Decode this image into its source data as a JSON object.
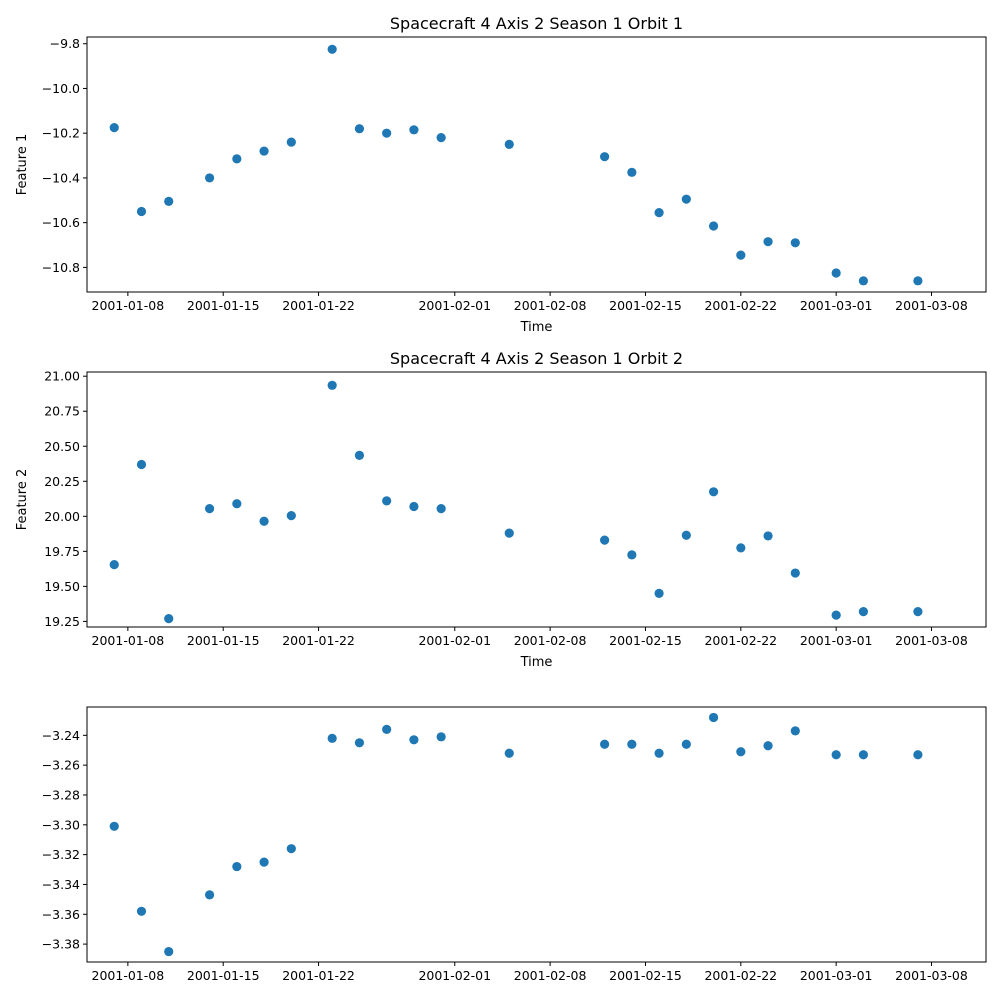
{
  "chart_data": [
    {
      "type": "scatter",
      "title": "Spacecraft 4 Axis 2 Season 1 Orbit 1",
      "xlabel": "Time",
      "ylabel": "Feature 1",
      "xlim": [
        "2001-01-05",
        "2001-03-12"
      ],
      "ylim": [
        -10.91,
        -9.77
      ],
      "xticks": [
        "2001-01-08",
        "2001-01-15",
        "2001-01-22",
        "2001-02-01",
        "2001-02-08",
        "2001-02-15",
        "2001-02-22",
        "2001-03-01",
        "2001-03-08"
      ],
      "yticks": [
        "-10.8",
        "-10.6",
        "-10.4",
        "-10.2",
        "-10.0",
        "-9.8"
      ],
      "marker_color": "#1f77b4",
      "grid": false,
      "series": [
        {
          "x": [
            "2001-01-07",
            "2001-01-09",
            "2001-01-11",
            "2001-01-14",
            "2001-01-16",
            "2001-01-18",
            "2001-01-20",
            "2001-01-23",
            "2001-01-25",
            "2001-01-27",
            "2001-01-29",
            "2001-01-31",
            "2001-02-05",
            "2001-02-12",
            "2001-02-14",
            "2001-02-16",
            "2001-02-18",
            "2001-02-20",
            "2001-02-22",
            "2001-02-24",
            "2001-02-26",
            "2001-03-01",
            "2001-03-03",
            "2001-03-07"
          ],
          "y": [
            -10.175,
            -10.55,
            -10.505,
            -10.4,
            -10.315,
            -10.28,
            -10.24,
            -9.825,
            -10.18,
            -10.2,
            -10.185,
            -10.22,
            -10.25,
            -10.305,
            -10.375,
            -10.555,
            -10.495,
            -10.615,
            -10.745,
            -10.685,
            -10.69,
            -10.825,
            -10.86,
            -10.86
          ]
        }
      ]
    },
    {
      "type": "scatter",
      "title": "Spacecraft 4 Axis 2 Season 1 Orbit 2",
      "xlabel": "Time",
      "ylabel": "Feature 2",
      "xlim": [
        "2001-01-05",
        "2001-03-12"
      ],
      "ylim": [
        19.21,
        21.03
      ],
      "xticks": [
        "2001-01-08",
        "2001-01-15",
        "2001-01-22",
        "2001-02-01",
        "2001-02-08",
        "2001-02-15",
        "2001-02-22",
        "2001-03-01",
        "2001-03-08"
      ],
      "yticks": [
        "19.25",
        "19.50",
        "19.75",
        "20.00",
        "20.25",
        "20.50",
        "20.75",
        "21.00"
      ],
      "marker_color": "#1f77b4",
      "grid": false,
      "series": [
        {
          "x": [
            "2001-01-07",
            "2001-01-09",
            "2001-01-11",
            "2001-01-14",
            "2001-01-16",
            "2001-01-18",
            "2001-01-20",
            "2001-01-23",
            "2001-01-25",
            "2001-01-27",
            "2001-01-29",
            "2001-01-31",
            "2001-02-05",
            "2001-02-12",
            "2001-02-14",
            "2001-02-16",
            "2001-02-18",
            "2001-02-20",
            "2001-02-22",
            "2001-02-24",
            "2001-02-26",
            "2001-03-01",
            "2001-03-03",
            "2001-03-07"
          ],
          "y": [
            19.655,
            20.37,
            19.27,
            20.055,
            20.09,
            19.965,
            20.005,
            20.935,
            20.435,
            20.11,
            20.07,
            20.055,
            19.88,
            19.83,
            19.725,
            19.45,
            19.865,
            20.175,
            19.775,
            19.86,
            19.595,
            19.295,
            19.32,
            19.32
          ]
        }
      ]
    },
    {
      "type": "scatter",
      "title": "",
      "xlabel": "",
      "ylabel": "",
      "xlim": [
        "2001-01-05",
        "2001-03-12"
      ],
      "ylim": [
        -3.392,
        -3.221
      ],
      "xticks": [
        "2001-01-08",
        "2001-01-15",
        "2001-01-22",
        "2001-02-01",
        "2001-02-08",
        "2001-02-15",
        "2001-02-22",
        "2001-03-01",
        "2001-03-08"
      ],
      "yticks": [
        "-3.38",
        "-3.36",
        "-3.34",
        "-3.32",
        "-3.30",
        "-3.28",
        "-3.26",
        "-3.24"
      ],
      "marker_color": "#1f77b4",
      "grid": false,
      "series": [
        {
          "x": [
            "2001-01-07",
            "2001-01-09",
            "2001-01-11",
            "2001-01-14",
            "2001-01-16",
            "2001-01-18",
            "2001-01-20",
            "2001-01-23",
            "2001-01-25",
            "2001-01-27",
            "2001-01-29",
            "2001-01-31",
            "2001-02-05",
            "2001-02-12",
            "2001-02-14",
            "2001-02-16",
            "2001-02-18",
            "2001-02-20",
            "2001-02-22",
            "2001-02-24",
            "2001-02-26",
            "2001-03-01",
            "2001-03-03",
            "2001-03-07"
          ],
          "y": [
            -3.301,
            -3.358,
            -3.385,
            -3.347,
            -3.328,
            -3.325,
            -3.316,
            -3.242,
            -3.245,
            -3.236,
            -3.243,
            -3.241,
            -3.252,
            -3.246,
            -3.246,
            -3.252,
            -3.246,
            -3.228,
            -3.251,
            -3.247,
            -3.237,
            -3.253,
            -3.253,
            -3.253
          ]
        }
      ]
    }
  ]
}
